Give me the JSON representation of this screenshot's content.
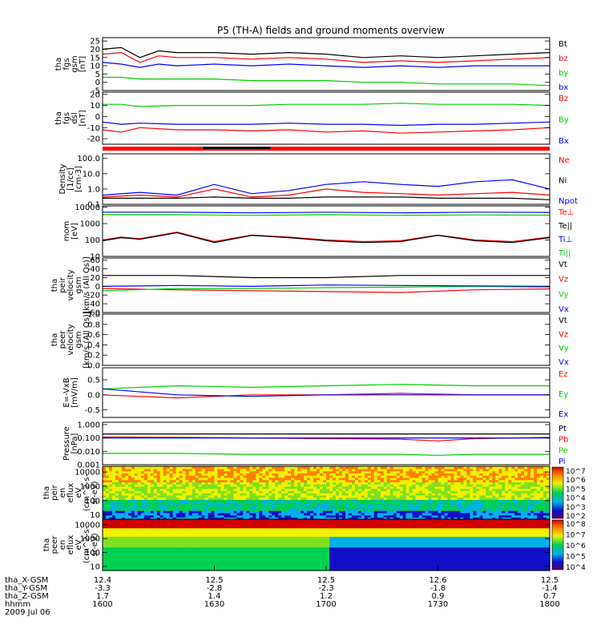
{
  "title": "P5 (TH-A) fields and ground moments overview",
  "time_axis": {
    "date": "2009 Jul 06",
    "start": "1600",
    "end": "1800",
    "ticks": [
      "1600",
      "1630",
      "1700",
      "1730",
      "1800"
    ],
    "ephemeris": [
      {
        "label": "tha_X-GSM",
        "values": [
          "12.4",
          "12.5",
          "12.5",
          "12.6",
          "12.5"
        ]
      },
      {
        "label": "tha_Y-GSM",
        "values": [
          "-3.3",
          "-2.8",
          "-2.3",
          "-1.8",
          "-1.4"
        ]
      },
      {
        "label": "tha_Z-GSM",
        "values": [
          "1.7",
          "1.4",
          "1.2",
          "0.9",
          "0.7"
        ]
      },
      {
        "label": "hhmm",
        "values": [
          "1600",
          "1630",
          "1700",
          "1730",
          "1800"
        ]
      }
    ],
    "date_label": "2009 Jul 06"
  },
  "colors": {
    "black": "#000000",
    "red": "#ff0000",
    "green": "#00cc00",
    "blue": "#0000ff"
  },
  "chart_data": [
    {
      "type": "line",
      "id": "fgs_gsm",
      "ylabel": [
        "tha",
        "fgs",
        "gsm",
        "[nT]"
      ],
      "ticks": [
        25,
        20,
        15,
        10,
        5,
        0,
        -5
      ],
      "ylim": [
        -5,
        27
      ],
      "legend": [
        {
          "name": "Bt",
          "color": "#000000"
        },
        {
          "name": "bz",
          "color": "#ff0000"
        },
        {
          "name": "by",
          "color": "#00cc00"
        },
        {
          "name": "bx",
          "color": "#0000ff"
        }
      ],
      "series": [
        {
          "name": "Bt",
          "x": [
            "1600",
            "1605",
            "1610",
            "1615",
            "1620",
            "1630",
            "1640",
            "1650",
            "1700",
            "1710",
            "1720",
            "1730",
            "1740",
            "1750",
            "1800"
          ],
          "values": [
            20,
            21,
            15,
            19,
            18,
            18,
            17,
            18,
            17,
            15,
            16,
            15,
            16,
            17,
            18
          ]
        },
        {
          "name": "bz",
          "x": [
            "1600",
            "1605",
            "1610",
            "1615",
            "1620",
            "1630",
            "1640",
            "1650",
            "1700",
            "1710",
            "1720",
            "1730",
            "1740",
            "1750",
            "1800"
          ],
          "values": [
            17,
            18,
            12,
            16,
            15,
            15,
            14,
            15,
            14,
            12,
            13,
            12,
            13,
            14,
            15
          ]
        },
        {
          "name": "by",
          "x": [
            "1600",
            "1605",
            "1610",
            "1615",
            "1620",
            "1630",
            "1640",
            "1650",
            "1700",
            "1710",
            "1720",
            "1730",
            "1740",
            "1750",
            "1800"
          ],
          "values": [
            3,
            3,
            2,
            2,
            2,
            2,
            1,
            1,
            1,
            0,
            0,
            -1,
            -1,
            -1,
            -2
          ]
        },
        {
          "name": "bx",
          "x": [
            "1600",
            "1605",
            "1610",
            "1615",
            "1620",
            "1630",
            "1640",
            "1650",
            "1700",
            "1710",
            "1720",
            "1730",
            "1740",
            "1750",
            "1800"
          ],
          "values": [
            12,
            11,
            9,
            11,
            10,
            11,
            10,
            11,
            10,
            9,
            10,
            9,
            10,
            10,
            10
          ]
        }
      ]
    },
    {
      "type": "line",
      "id": "fgs_dsl",
      "ylabel": [
        "tha",
        "fgs",
        "dsl",
        "[nT]"
      ],
      "ticks": [
        20,
        10,
        0,
        -10,
        -20
      ],
      "ylim": [
        -25,
        22
      ],
      "legend": [
        {
          "name": "Bz",
          "color": "#ff0000"
        },
        {
          "name": "By",
          "color": "#00cc00"
        },
        {
          "name": "Bx",
          "color": "#0000ff"
        }
      ],
      "series": [
        {
          "name": "Bz",
          "x": [
            "1600",
            "1605",
            "1610",
            "1620",
            "1630",
            "1640",
            "1650",
            "1700",
            "1710",
            "1720",
            "1730",
            "1740",
            "1750",
            "1800"
          ],
          "values": [
            -12,
            -14,
            -10,
            -12,
            -12,
            -13,
            -12,
            -14,
            -13,
            -15,
            -14,
            -13,
            -12,
            -10
          ]
        },
        {
          "name": "By",
          "x": [
            "1600",
            "1605",
            "1610",
            "1620",
            "1630",
            "1640",
            "1650",
            "1700",
            "1710",
            "1720",
            "1730",
            "1740",
            "1750",
            "1800"
          ],
          "values": [
            11,
            11,
            9,
            10,
            10,
            10,
            11,
            11,
            11,
            12,
            11,
            11,
            11,
            10
          ]
        },
        {
          "name": "Bx",
          "x": [
            "1600",
            "1605",
            "1610",
            "1620",
            "1630",
            "1640",
            "1650",
            "1700",
            "1710",
            "1720",
            "1730",
            "1740",
            "1750",
            "1800"
          ],
          "values": [
            -5,
            -7,
            -6,
            -7,
            -7,
            -7,
            -6,
            -7,
            -7,
            -8,
            -7,
            -7,
            -6,
            -5
          ]
        }
      ]
    },
    {
      "type": "line",
      "id": "density",
      "ylabel": [
        "Density",
        "[1/cc]",
        "[cm-3]"
      ],
      "yscale": "log",
      "ticks": [
        "100.0",
        "10.0",
        "1.0",
        "0.1"
      ],
      "ylim": [
        0.1,
        200
      ],
      "legend": [
        {
          "name": "Ne",
          "color": "#ff0000"
        },
        {
          "name": "Ni",
          "color": "#000000"
        },
        {
          "name": "Npot",
          "color": "#0000ff"
        }
      ],
      "series": [
        {
          "name": "Ne",
          "x": [
            "1600",
            "1610",
            "1620",
            "1630",
            "1640",
            "1650",
            "1700",
            "1710",
            "1720",
            "1730",
            "1740",
            "1750",
            "1800"
          ],
          "values": [
            0.3,
            0.4,
            0.3,
            1,
            0.3,
            0.4,
            1,
            0.6,
            0.5,
            0.4,
            0.5,
            0.6,
            0.4
          ]
        },
        {
          "name": "Ni",
          "x": [
            "1600",
            "1610",
            "1620",
            "1630",
            "1640",
            "1650",
            "1700",
            "1710",
            "1720",
            "1730",
            "1740",
            "1750",
            "1800"
          ],
          "values": [
            0.25,
            0.25,
            0.25,
            0.3,
            0.25,
            0.25,
            0.3,
            0.3,
            0.3,
            0.25,
            0.25,
            0.25,
            0.2
          ]
        },
        {
          "name": "Npot",
          "x": [
            "1600",
            "1610",
            "1620",
            "1630",
            "1640",
            "1650",
            "1700",
            "1710",
            "1720",
            "1730",
            "1740",
            "1750",
            "1800"
          ],
          "values": [
            0.4,
            0.6,
            0.4,
            2,
            0.5,
            0.8,
            2,
            3,
            2,
            1.5,
            3,
            4,
            1
          ]
        }
      ]
    },
    {
      "type": "line",
      "id": "temp",
      "ylabel": [
        "mom",
        "[eV]"
      ],
      "yscale": "log",
      "ticks": [
        "10000",
        "1000",
        "100",
        "10"
      ],
      "ylim": [
        10,
        12000
      ],
      "legend": [
        {
          "name": "Te⊥",
          "color": "#ff0000"
        },
        {
          "name": "Te||",
          "color": "#000000"
        },
        {
          "name": "Ti⊥",
          "color": "#0000ff"
        },
        {
          "name": "Ti||",
          "color": "#00cc00"
        }
      ],
      "series": [
        {
          "name": "Te⊥",
          "x": [
            "1600",
            "1605",
            "1610",
            "1620",
            "1630",
            "1640",
            "1650",
            "1700",
            "1710",
            "1720",
            "1730",
            "1740",
            "1750",
            "1800"
          ],
          "values": [
            100,
            150,
            120,
            300,
            80,
            200,
            150,
            100,
            80,
            90,
            200,
            100,
            80,
            150
          ]
        },
        {
          "name": "Te||",
          "x": [
            "1600",
            "1605",
            "1610",
            "1620",
            "1630",
            "1640",
            "1650",
            "1700",
            "1710",
            "1720",
            "1730",
            "1740",
            "1750",
            "1800"
          ],
          "values": [
            90,
            140,
            110,
            280,
            70,
            190,
            140,
            90,
            70,
            80,
            190,
            90,
            70,
            140
          ]
        },
        {
          "name": "Ti⊥",
          "x": [
            "1600",
            "1620",
            "1640",
            "1700",
            "1720",
            "1740",
            "1800"
          ],
          "values": [
            5000,
            5000,
            4500,
            5000,
            4500,
            5000,
            4800
          ]
        },
        {
          "name": "Ti||",
          "x": [
            "1600",
            "1620",
            "1640",
            "1700",
            "1720",
            "1740",
            "1800"
          ],
          "values": [
            3500,
            3500,
            3200,
            3500,
            3200,
            3400,
            3300
          ]
        }
      ]
    },
    {
      "type": "line",
      "id": "peir_vel",
      "ylabel": [
        "tha",
        "peir",
        "velocity",
        "gsm",
        "[km/s (All Qs)]"
      ],
      "ticks": [
        60,
        40,
        20,
        0,
        -20,
        -40,
        -60
      ],
      "ylim": [
        -60,
        65
      ],
      "legend": [
        {
          "name": "Vt",
          "color": "#000000"
        },
        {
          "name": "Vz",
          "color": "#ff0000"
        },
        {
          "name": "Vy",
          "color": "#00cc00"
        },
        {
          "name": "Vx",
          "color": "#0000ff"
        }
      ],
      "series": [
        {
          "name": "Vt",
          "x": [
            "1600",
            "1620",
            "1640",
            "1700",
            "1720",
            "1740",
            "1800"
          ],
          "values": [
            25,
            25,
            20,
            20,
            25,
            25,
            25
          ]
        },
        {
          "name": "Vz",
          "x": [
            "1600",
            "1620",
            "1640",
            "1700",
            "1720",
            "1740",
            "1800"
          ],
          "values": [
            -5,
            -8,
            -10,
            -12,
            -14,
            -8,
            -6
          ]
        },
        {
          "name": "Vy",
          "x": [
            "1600",
            "1620",
            "1640",
            "1700",
            "1720",
            "1740",
            "1800"
          ],
          "values": [
            -10,
            -5,
            -5,
            -3,
            -2,
            0,
            -2
          ]
        },
        {
          "name": "Vx",
          "x": [
            "1600",
            "1620",
            "1640",
            "1700",
            "1720",
            "1740",
            "1800"
          ],
          "values": [
            0,
            2,
            0,
            3,
            2,
            1,
            0
          ]
        }
      ]
    },
    {
      "type": "line",
      "id": "peer_vel",
      "ylabel": [
        "tha",
        "peer",
        "velocity",
        "gsm",
        "[km/s (All Qs)]"
      ],
      "ticks": [
        "1.0",
        "0.8",
        "0.6",
        "0.4",
        "0.2",
        "0.0"
      ],
      "ylim": [
        0,
        1
      ],
      "legend": [
        {
          "name": "Vt",
          "color": "#000000"
        },
        {
          "name": "Vz",
          "color": "#ff0000"
        },
        {
          "name": "Vy",
          "color": "#00cc00"
        },
        {
          "name": "Vx",
          "color": "#0000ff"
        }
      ],
      "series": []
    },
    {
      "type": "line",
      "id": "efield",
      "ylabel": [
        "E=-VxB",
        "[mV/m]"
      ],
      "ticks": [
        "0.5",
        "0.0",
        "-0.5"
      ],
      "ylim": [
        -0.75,
        0.9
      ],
      "legend": [
        {
          "name": "Ez",
          "color": "#ff0000"
        },
        {
          "name": "Ey",
          "color": "#00cc00"
        },
        {
          "name": "Ex",
          "color": "#0000ff"
        }
      ],
      "series": [
        {
          "name": "Ez",
          "x": [
            "1600",
            "1620",
            "1640",
            "1700",
            "1720",
            "1740",
            "1800"
          ],
          "values": [
            0.0,
            -0.1,
            0.0,
            0.0,
            0.05,
            0.0,
            0.0
          ]
        },
        {
          "name": "Ey",
          "x": [
            "1600",
            "1620",
            "1640",
            "1700",
            "1720",
            "1740",
            "1800"
          ],
          "values": [
            0.2,
            0.3,
            0.25,
            0.3,
            0.35,
            0.3,
            0.3
          ]
        },
        {
          "name": "Ex",
          "x": [
            "1600",
            "1620",
            "1640",
            "1700",
            "1720",
            "1740",
            "1800"
          ],
          "values": [
            0.2,
            0.0,
            -0.05,
            0.0,
            0.0,
            0.0,
            0.0
          ]
        }
      ]
    },
    {
      "type": "line",
      "id": "pressure",
      "ylabel": [
        "Pressure",
        "[nPa]"
      ],
      "yscale": "log",
      "ticks": [
        "1.000",
        "0.100",
        "0.010",
        "0.001"
      ],
      "ylim": [
        0.001,
        1.5
      ],
      "legend": [
        {
          "name": "Pt",
          "color": "#000000"
        },
        {
          "name": "Pb",
          "color": "#ff0000"
        },
        {
          "name": "Pe",
          "color": "#00cc00"
        },
        {
          "name": "Pi",
          "color": "#0000ff"
        }
      ],
      "series": [
        {
          "name": "Pt",
          "x": [
            "1600",
            "1620",
            "1640",
            "1700",
            "1720",
            "1730",
            "1740",
            "1800"
          ],
          "values": [
            0.2,
            0.2,
            0.2,
            0.2,
            0.2,
            0.2,
            0.2,
            0.2
          ]
        },
        {
          "name": "Pb",
          "x": [
            "1600",
            "1620",
            "1640",
            "1700",
            "1720",
            "1730",
            "1740",
            "1800"
          ],
          "values": [
            0.12,
            0.11,
            0.1,
            0.09,
            0.08,
            0.06,
            0.09,
            0.11
          ]
        },
        {
          "name": "Pe",
          "x": [
            "1600",
            "1620",
            "1640",
            "1700",
            "1720",
            "1730",
            "1740",
            "1800"
          ],
          "values": [
            0.007,
            0.007,
            0.006,
            0.006,
            0.006,
            0.005,
            0.006,
            0.006
          ]
        },
        {
          "name": "Pi",
          "x": [
            "1600",
            "1620",
            "1640",
            "1700",
            "1720",
            "1730",
            "1740",
            "1800"
          ],
          "values": [
            0.1,
            0.1,
            0.1,
            0.1,
            0.1,
            0.1,
            0.1,
            0.1
          ]
        }
      ]
    },
    {
      "type": "heatmap",
      "id": "peir_en",
      "ylabel": [
        "tha",
        "peir",
        "en",
        "eflux",
        "eV",
        "(cm^2-s-",
        "sr-eV)"
      ],
      "yscale": "log",
      "ticks": [
        "10000",
        "1000",
        "100",
        "10"
      ],
      "ylim": [
        5,
        25000
      ],
      "colorbar": {
        "ticks": [
          "10^7",
          "10^6",
          "10^5",
          "10^4",
          "10^3",
          "10^2"
        ]
      }
    },
    {
      "type": "heatmap",
      "id": "peer_en",
      "ylabel": [
        "tha",
        "peer",
        "en",
        "eflux",
        "eV",
        "(cm^2-s-",
        "sr-eV)"
      ],
      "yscale": "log",
      "ticks": [
        "10000",
        "1000",
        "100",
        "10"
      ],
      "ylim": [
        5,
        25000
      ],
      "colorbar": {
        "ticks": [
          "10^8",
          "10^7",
          "10^6",
          "10^5",
          "10^4"
        ]
      }
    }
  ]
}
